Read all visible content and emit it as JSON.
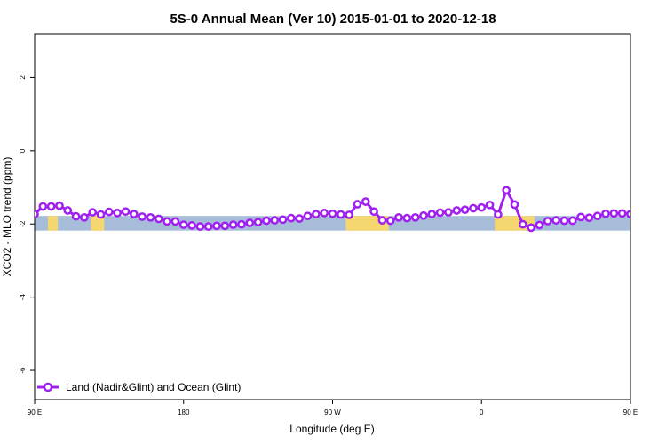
{
  "chart_data": {
    "type": "line",
    "title": "5S-0 Annual Mean (Ver 10)   2015-01-01 to 2020-12-18",
    "xlabel": "Longitude (deg E)",
    "ylabel": "XCO2 - MLO trend (ppm)",
    "xlim": [
      90,
      450
    ],
    "ylim": [
      -6.8,
      3.2
    ],
    "x_ticks": [
      {
        "value": 90,
        "label": "90 E"
      },
      {
        "value": 180,
        "label": "180"
      },
      {
        "value": 270,
        "label": "90 W"
      },
      {
        "value": 360,
        "label": "0"
      },
      {
        "value": 450,
        "label": "90 E"
      },
      {
        "value": 540,
        "label": "180"
      }
    ],
    "y_ticks": [
      2,
      0,
      -2,
      -4,
      -6
    ],
    "grid": false,
    "legend_position": "bottom-left",
    "band": {
      "y_top": -1.78,
      "y_bottom": -2.18,
      "ocean_color": "#a6bcd8",
      "land_color": "#f5d66f"
    },
    "land_segments": [
      [
        98,
        104
      ],
      [
        124,
        132
      ],
      [
        278,
        304
      ],
      [
        368,
        392
      ],
      [
        528,
        536
      ],
      [
        562,
        578
      ]
    ],
    "series": [
      {
        "name": "Land (Nadir&Glint) and Ocean (Glint)",
        "color": "#a020f0",
        "x": [
          90,
          95,
          100,
          105,
          110,
          115,
          120,
          125,
          130,
          135,
          140,
          145,
          150,
          155,
          160,
          165,
          170,
          175,
          180,
          185,
          190,
          195,
          200,
          205,
          210,
          215,
          220,
          225,
          230,
          235,
          240,
          245,
          250,
          255,
          260,
          265,
          270,
          275,
          280,
          285,
          290,
          295,
          300,
          305,
          310,
          315,
          320,
          325,
          330,
          335,
          340,
          345,
          350,
          355,
          360,
          365,
          370,
          375,
          380,
          385,
          390,
          395,
          400,
          405,
          410,
          415,
          420,
          425,
          430,
          435,
          440,
          445,
          450
        ],
        "y": [
          -1.73,
          -1.52,
          -1.52,
          -1.5,
          -1.63,
          -1.79,
          -1.82,
          -1.68,
          -1.74,
          -1.67,
          -1.7,
          -1.66,
          -1.73,
          -1.8,
          -1.82,
          -1.86,
          -1.93,
          -1.93,
          -2.02,
          -2.04,
          -2.07,
          -2.07,
          -2.05,
          -2.05,
          -2.02,
          -2.01,
          -1.97,
          -1.95,
          -1.91,
          -1.9,
          -1.88,
          -1.84,
          -1.85,
          -1.78,
          -1.73,
          -1.7,
          -1.72,
          -1.74,
          -1.75,
          -1.46,
          -1.39,
          -1.66,
          -1.9,
          -1.91,
          -1.82,
          -1.84,
          -1.82,
          -1.77,
          -1.73,
          -1.69,
          -1.68,
          -1.63,
          -1.61,
          -1.57,
          -1.55,
          -1.48,
          -1.74,
          -1.08,
          -1.47,
          -2.01,
          -2.1,
          -2.03,
          -1.92,
          -1.9,
          -1.91,
          -1.91,
          -1.81,
          -1.83,
          -1.78,
          -1.72,
          -1.71,
          -1.71,
          -1.73
        ]
      }
    ]
  }
}
